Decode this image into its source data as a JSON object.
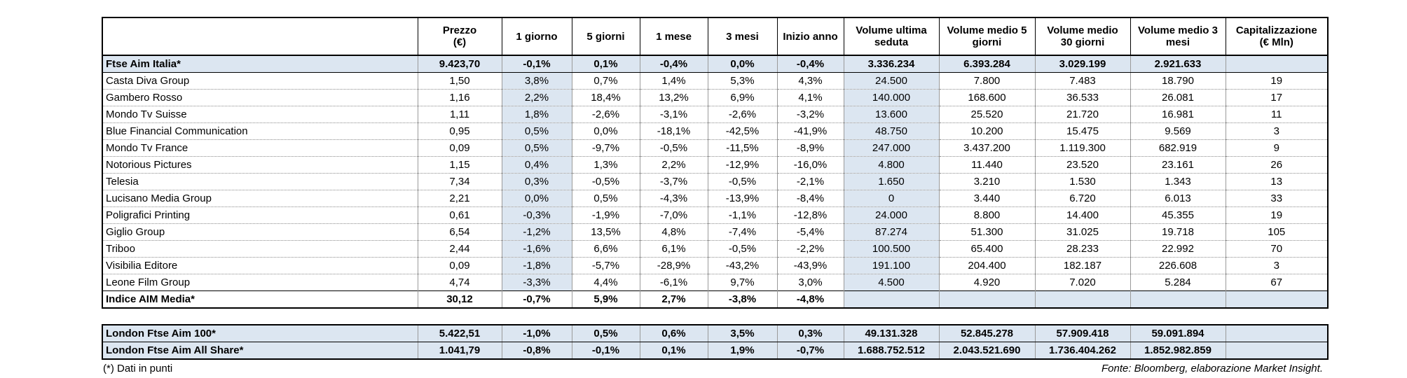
{
  "header": {
    "name": "",
    "prezzo": [
      "Prezzo",
      "(€)"
    ],
    "g1": "1 giorno",
    "g5": "5 giorni",
    "m1": "1 mese",
    "m3": "3 mesi",
    "ytd": "Inizio anno",
    "vol": [
      "Volume ultima",
      "seduta"
    ],
    "vm5": [
      "Volume medio 5",
      "giorni"
    ],
    "vm30": [
      "Volume medio",
      "30 giorni"
    ],
    "vm3": [
      "Volume medio 3",
      "mesi"
    ],
    "cap": [
      "Capitalizzazione",
      "(€ Mln)"
    ]
  },
  "index_top": [
    "Ftse Aim Italia*",
    "9.423,70",
    "-0,1%",
    "0,1%",
    "-0,4%",
    "0,0%",
    "-0,4%",
    "3.336.234",
    "6.393.284",
    "3.029.199",
    "2.921.633",
    ""
  ],
  "rows": [
    [
      "Casta Diva Group",
      "1,50",
      "3,8%",
      "0,7%",
      "1,4%",
      "5,3%",
      "4,3%",
      "24.500",
      "7.800",
      "7.483",
      "18.790",
      "19"
    ],
    [
      "Gambero Rosso",
      "1,16",
      "2,2%",
      "18,4%",
      "13,2%",
      "6,9%",
      "4,1%",
      "140.000",
      "168.600",
      "36.533",
      "26.081",
      "17"
    ],
    [
      "Mondo Tv Suisse",
      "1,11",
      "1,8%",
      "-2,6%",
      "-3,1%",
      "-2,6%",
      "-3,2%",
      "13.600",
      "25.520",
      "21.720",
      "16.981",
      "11"
    ],
    [
      "Blue Financial Communication",
      "0,95",
      "0,5%",
      "0,0%",
      "-18,1%",
      "-42,5%",
      "-41,9%",
      "48.750",
      "10.200",
      "15.475",
      "9.569",
      "3"
    ],
    [
      "Mondo Tv France",
      "0,09",
      "0,5%",
      "-9,7%",
      "-0,5%",
      "-11,5%",
      "-8,9%",
      "247.000",
      "3.437.200",
      "1.119.300",
      "682.919",
      "9"
    ],
    [
      "Notorious Pictures",
      "1,15",
      "0,4%",
      "1,3%",
      "2,2%",
      "-12,9%",
      "-16,0%",
      "4.800",
      "11.440",
      "23.520",
      "23.161",
      "26"
    ],
    [
      "Telesia",
      "7,34",
      "0,3%",
      "-0,5%",
      "-3,7%",
      "-0,5%",
      "-2,1%",
      "1.650",
      "3.210",
      "1.530",
      "1.343",
      "13"
    ],
    [
      "Lucisano Media Group",
      "2,21",
      "0,0%",
      "0,5%",
      "-4,3%",
      "-13,9%",
      "-8,4%",
      "0",
      "3.440",
      "6.720",
      "6.013",
      "33"
    ],
    [
      "Poligrafici Printing",
      "0,61",
      "-0,3%",
      "-1,9%",
      "-7,0%",
      "-1,1%",
      "-12,8%",
      "24.000",
      "8.800",
      "14.400",
      "45.355",
      "19"
    ],
    [
      "Giglio Group",
      "6,54",
      "-1,2%",
      "13,5%",
      "4,8%",
      "-7,4%",
      "-5,4%",
      "87.274",
      "51.300",
      "31.025",
      "19.718",
      "105"
    ],
    [
      "Triboo",
      "2,44",
      "-1,6%",
      "6,6%",
      "6,1%",
      "-0,5%",
      "-2,2%",
      "100.500",
      "65.400",
      "28.233",
      "22.992",
      "70"
    ],
    [
      "Visibilia Editore",
      "0,09",
      "-1,8%",
      "-5,7%",
      "-28,9%",
      "-43,2%",
      "-43,9%",
      "191.100",
      "204.400",
      "182.187",
      "226.608",
      "3"
    ],
    [
      "Leone Film Group",
      "4,74",
      "-3,3%",
      "4,4%",
      "-6,1%",
      "9,7%",
      "3,0%",
      "4.500",
      "4.920",
      "7.020",
      "5.284",
      "67"
    ]
  ],
  "index_bottom": [
    "Indice AIM Media*",
    "30,12",
    "-0,7%",
    "5,9%",
    "2,7%",
    "-3,8%",
    "-4,8%",
    "",
    "",
    "",
    "",
    ""
  ],
  "london": [
    [
      "London Ftse Aim 100*",
      "5.422,51",
      "-1,0%",
      "0,5%",
      "0,6%",
      "3,5%",
      "0,3%",
      "49.131.328",
      "52.845.278",
      "57.909.418",
      "59.091.894",
      ""
    ],
    [
      "London Ftse Aim All Share*",
      "1.041,79",
      "-0,8%",
      "-0,1%",
      "0,1%",
      "1,9%",
      "-0,7%",
      "1.688.752.512",
      "2.043.521.690",
      "1.736.404.262",
      "1.852.982.859",
      ""
    ]
  ],
  "footer": {
    "note": "(*) Dati in punti",
    "source": "Fonte: Bloomberg, elaborazione Market Insight."
  },
  "colors": {
    "shade": "#dce6f1",
    "border": "#000000"
  }
}
